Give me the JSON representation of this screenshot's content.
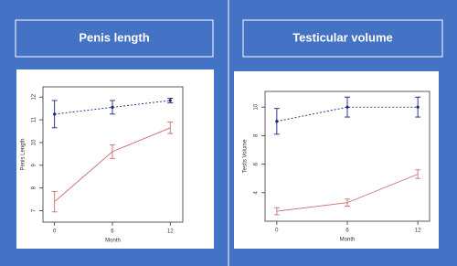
{
  "chart_data": [
    {
      "type": "line",
      "title": "Penis length",
      "x_label": "Month",
      "y_label": "Penis Length",
      "x": [
        0,
        6,
        12
      ],
      "xlim": [
        -1.2,
        13.3
      ],
      "xticks": [
        0,
        6,
        12
      ],
      "ylim": [
        6.5,
        12.45
      ],
      "yticks": [
        7,
        8,
        9,
        10,
        11,
        12
      ],
      "series": [
        {
          "color": "#1a237e",
          "dashed": true,
          "values": [
            11.25,
            11.55,
            11.85
          ],
          "errors": [
            0.6,
            0.3,
            0.1
          ]
        },
        {
          "color": "#c87070",
          "dashed": false,
          "values": [
            7.4,
            9.6,
            10.65
          ],
          "errors": [
            0.45,
            0.3,
            0.25
          ]
        }
      ]
    },
    {
      "type": "line",
      "title": "Testicular volume",
      "x_label": "Month",
      "y_label": "Testis Volume",
      "x": [
        0,
        6,
        12
      ],
      "xlim": [
        -1,
        13
      ],
      "xticks": [
        0,
        6,
        12
      ],
      "ylim": [
        2,
        11.1
      ],
      "yticks": [
        4,
        6,
        8,
        10
      ],
      "series": [
        {
          "color": "#1a237e",
          "dashed": true,
          "values": [
            9,
            10,
            10
          ],
          "errors": [
            0.9,
            0.7,
            0.7
          ]
        },
        {
          "color": "#c87070",
          "dashed": false,
          "values": [
            2.7,
            3.3,
            5.3
          ],
          "errors": [
            0.25,
            0.25,
            0.3
          ]
        }
      ]
    }
  ]
}
